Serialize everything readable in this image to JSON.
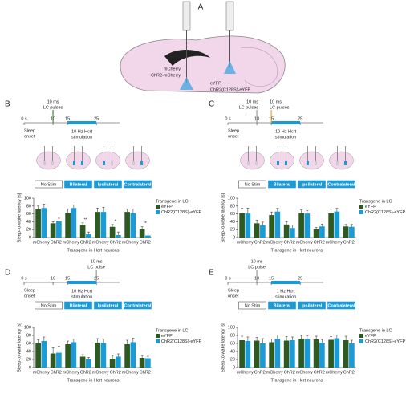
{
  "panel_a": {
    "label": "A",
    "left_labels": [
      "mCherry",
      "ChR2-mCherry"
    ],
    "right_labels": [
      "eYFP",
      "ChR2(C128S)-eYFP"
    ]
  },
  "chart_data": [
    {
      "type": "bar",
      "panel_label": "B",
      "timeline": {
        "xlim": [
          0,
          33
        ],
        "ticks": [
          {
            "value": 0,
            "label": "0 s"
          },
          10,
          15,
          25
        ],
        "onset_label": [
          "Sleep",
          "onset"
        ],
        "stim": [
          15,
          25
        ],
        "stim_label": [
          "10 Hz Hcrt",
          "stimulation"
        ],
        "stim_color": "#1b9ad6",
        "pulses": [
          {
            "at": 10,
            "label": [
              "10 ms",
              "LC pulses"
            ],
            "color": "#4a8a3a"
          }
        ]
      },
      "groups": [
        "No Stim",
        "Bilateral",
        "Ipsilateral",
        "Contralateral"
      ],
      "categories": [
        "mCherry",
        "ChR2",
        "mCherry",
        "ChR2",
        "mCherry",
        "ChR2",
        "mCherry",
        "ChR2"
      ],
      "series": [
        {
          "name": "eYFP",
          "color": "#2e5a22",
          "values": [
            72,
            36,
            63,
            32,
            65,
            27,
            65,
            22
          ],
          "errors": [
            8,
            4,
            10,
            5,
            10,
            6,
            8,
            5
          ]
        },
        {
          "name": "ChR2(C128S)-eYFP",
          "color": "#1b9ad6",
          "values": [
            75,
            41,
            75,
            8,
            65,
            6,
            62,
            5
          ],
          "errors": [
            10,
            8,
            8,
            6,
            12,
            8,
            10,
            4
          ]
        }
      ],
      "significance": [
        {
          "label": "**",
          "at": 3
        },
        {
          "label": "*",
          "at": 5
        },
        {
          "label": "**",
          "at": 7
        }
      ],
      "ylim": [
        0,
        100
      ],
      "yticks": [
        0,
        20,
        40,
        60,
        80,
        100
      ],
      "y_label": "Sleep-to-wake latency [s]",
      "x_label": "Transgene in Hcrt neurons",
      "legend_title": "Transgene in LC"
    },
    {
      "type": "bar",
      "panel_label": "C",
      "timeline": {
        "xlim": [
          0,
          33
        ],
        "ticks": [
          {
            "value": 0,
            "label": "0 s"
          },
          10,
          15,
          25
        ],
        "onset_label": [
          "Sleep",
          "onset"
        ],
        "stim": [
          15,
          25
        ],
        "stim_label": [
          "10 Hz Hcrt",
          "stimulation"
        ],
        "stim_color": "#1b9ad6",
        "pulses": [
          {
            "at": 10,
            "label": [
              "10 ms",
              "LC pulses"
            ],
            "color": "#999999"
          },
          {
            "at": 15,
            "label": [
              "10 ms",
              "LC pulses"
            ],
            "color": "#f0a020"
          }
        ]
      },
      "groups": [
        "No Stim",
        "Bilateral",
        "Ipsilateral",
        "Contralateral"
      ],
      "categories": [
        "mCherry",
        "ChR2",
        "mCherry",
        "ChR2",
        "mCherry",
        "ChR2",
        "mCherry",
        "ChR2"
      ],
      "series": [
        {
          "name": "eYFP",
          "color": "#2e5a22",
          "values": [
            62,
            36,
            57,
            33,
            62,
            21,
            62,
            28
          ],
          "errors": [
            12,
            8,
            8,
            7,
            8,
            4,
            10,
            5
          ]
        },
        {
          "name": "ChR2(C128S)-eYFP",
          "color": "#1b9ad6",
          "values": [
            61,
            31,
            66,
            24,
            61,
            28,
            66,
            27
          ],
          "errors": [
            14,
            8,
            8,
            8,
            8,
            6,
            8,
            6
          ]
        }
      ],
      "ylim": [
        0,
        100
      ],
      "yticks": [
        0,
        20,
        40,
        60,
        80,
        100
      ],
      "y_label": "Sleep-to-wake latency [s]",
      "x_label": "Transgene in Hcrt neurons",
      "legend_title": "Transgene in LC"
    },
    {
      "type": "bar",
      "panel_label": "D",
      "timeline": {
        "xlim": [
          0,
          33
        ],
        "ticks": [
          {
            "value": 0,
            "label": "0 s"
          },
          10,
          15,
          25
        ],
        "onset_label": [
          "Sleep",
          "onset"
        ],
        "stim": [
          15,
          25
        ],
        "stim_label": [
          "10 Hz Hcrt",
          "stimulation"
        ],
        "stim_color": "#1b9ad6",
        "pulses": [
          {
            "at": 25,
            "label": [
              "10 ms",
              "LC pulse"
            ],
            "color": "#999999"
          }
        ]
      },
      "groups": [
        "No Stim",
        "Bilateral",
        "Ipsilateral",
        "Contralateral"
      ],
      "categories": [
        "mCherry",
        "ChR2",
        "mCherry",
        "ChR2",
        "mCherry",
        "ChR2",
        "mCherry",
        "ChR2"
      ],
      "series": [
        {
          "name": "eYFP",
          "color": "#2e5a22",
          "values": [
            61,
            35,
            58,
            27,
            62,
            22,
            58,
            24
          ],
          "errors": [
            8,
            14,
            8,
            5,
            10,
            8,
            10,
            6
          ]
        },
        {
          "name": "ChR2(C128S)-eYFP",
          "color": "#1b9ad6",
          "values": [
            66,
            37,
            63,
            20,
            61,
            27,
            63,
            23
          ],
          "errors": [
            10,
            16,
            8,
            5,
            10,
            7,
            10,
            5
          ]
        }
      ],
      "ylim": [
        0,
        100
      ],
      "yticks": [
        0,
        20,
        40,
        60,
        80,
        100
      ],
      "y_label": "Sleep-to-wake latency [s]",
      "x_label": "Transgene in Hcrt neurons",
      "legend_title": "Transgene in LC"
    },
    {
      "type": "bar",
      "panel_label": "E",
      "timeline": {
        "xlim": [
          0,
          33
        ],
        "ticks": [
          {
            "value": 0,
            "label": "0 s"
          },
          10,
          15,
          25
        ],
        "onset_label": [
          "Sleep",
          "onset"
        ],
        "stim": [
          15,
          25
        ],
        "stim_label": [
          "1 Hz Hcrt",
          "stimulation"
        ],
        "stim_color": "#1b9ad6",
        "pulses": [
          {
            "at": 10,
            "label": [
              "10 ms",
              "LC pulse"
            ],
            "color": "#999999"
          }
        ]
      },
      "groups": [
        "No Stim",
        "Bilateral",
        "Ipsilateral",
        "Contralateral"
      ],
      "categories": [
        "mCherry",
        "ChR2",
        "mCherry",
        "ChR2",
        "mCherry",
        "ChR2",
        "mCherry",
        "ChR2"
      ],
      "series": [
        {
          "name": "eYFP",
          "color": "#2e5a22",
          "values": [
            68,
            67,
            63,
            67,
            72,
            70,
            69,
            68
          ],
          "errors": [
            10,
            8,
            8,
            10,
            8,
            8,
            8,
            10
          ]
        },
        {
          "name": "ChR2(C128S)-eYFP",
          "color": "#1b9ad6",
          "values": [
            66,
            60,
            71,
            68,
            71,
            62,
            73,
            60
          ],
          "errors": [
            10,
            12,
            10,
            8,
            8,
            8,
            8,
            8
          ]
        }
      ],
      "ylim": [
        0,
        100
      ],
      "yticks": [
        0,
        20,
        40,
        60,
        80,
        100
      ],
      "y_label": "Sleep-to-wake latency [s]",
      "x_label": "Transgene in Hcrt neurons",
      "legend_title": "Transgene in LC"
    }
  ]
}
